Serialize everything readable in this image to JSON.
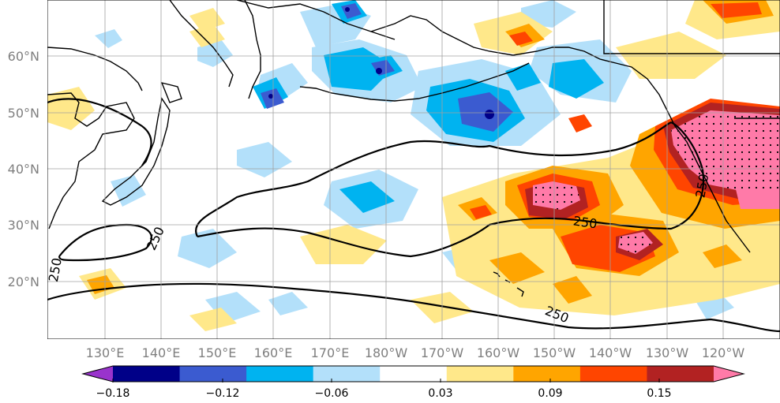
{
  "map": {
    "lon_labels": [
      "130°E",
      "140°E",
      "150°E",
      "160°E",
      "170°E",
      "180°W",
      "170°W",
      "160°W",
      "150°W",
      "140°W",
      "130°W",
      "120°W"
    ],
    "lat_labels": [
      "60°N",
      "50°N",
      "40°N",
      "30°N",
      "20°N"
    ],
    "contour_labels": [
      "250",
      "250",
      "250",
      "250",
      "250"
    ],
    "colors": {
      "land_outline": "#000000",
      "grid": "#a0a0a0",
      "neg_light": "#b3e0fa",
      "neg_mid": "#00b3f0",
      "neg_strong": "#3b5bd0",
      "neg_deep": "#000088",
      "neg_extreme": "#9933cc",
      "pos_light": "#ffe88a",
      "pos_mid": "#ffa500",
      "pos_strong": "#ff4500",
      "pos_deep": "#b22222",
      "pos_extreme": "#ff7aa8"
    }
  },
  "colorbar": {
    "tick_labels": [
      "−0.18",
      "−0.12",
      "−0.06",
      "0.03",
      "0.09",
      "0.15"
    ],
    "bins": [
      {
        "color": "#9933cc"
      },
      {
        "color": "#000088"
      },
      {
        "color": "#3b5bd0"
      },
      {
        "color": "#00b3f0"
      },
      {
        "color": "#b3e0fa"
      },
      {
        "color": "#ffffff"
      },
      {
        "color": "#ffe88a"
      },
      {
        "color": "#ffa500"
      },
      {
        "color": "#ff4500"
      },
      {
        "color": "#b22222"
      },
      {
        "color": "#ff7aa8"
      }
    ]
  }
}
